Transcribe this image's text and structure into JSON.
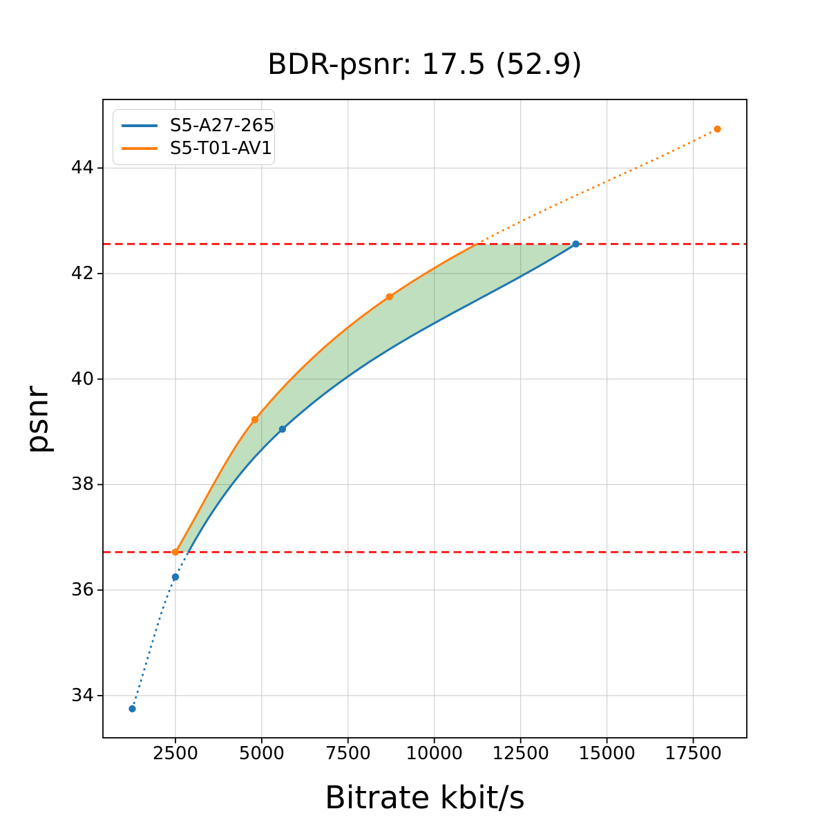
{
  "figure": {
    "title": "BDR-psnr: 17.5 (52.9)",
    "xlabel": "Bitrate kbit/s",
    "ylabel": "psnr"
  },
  "chart_data": {
    "type": "line",
    "title": "BDR-psnr: 17.5 (52.9)",
    "xlabel": "Bitrate kbit/s",
    "ylabel": "psnr",
    "xlim": [
      400,
      19050
    ],
    "ylim": [
      33.2,
      45.3
    ],
    "xticks": [
      2500,
      5000,
      7500,
      10000,
      12500,
      15000,
      17500
    ],
    "yticks": [
      34,
      36,
      38,
      40,
      42,
      44
    ],
    "grid": true,
    "grid_color": "#c8c8c8",
    "legend_position": "upper left",
    "series": [
      {
        "name": "S5-A27-265",
        "color": "#1f77b4",
        "x": [
          1250,
          2500,
          5600,
          14100
        ],
        "y": [
          33.75,
          36.25,
          39.05,
          42.56
        ]
      },
      {
        "name": "S5-T01-AV1",
        "color": "#ff7f0e",
        "x": [
          2500,
          4800,
          8700,
          18200
        ],
        "y": [
          36.72,
          39.23,
          41.56,
          44.74
        ]
      }
    ],
    "overlap": {
      "lower_psnr": 36.72,
      "upper_psnr": 42.56,
      "line_color": "#ff0000",
      "fill_color": "#008000",
      "fill_opacity": 0.25
    }
  }
}
